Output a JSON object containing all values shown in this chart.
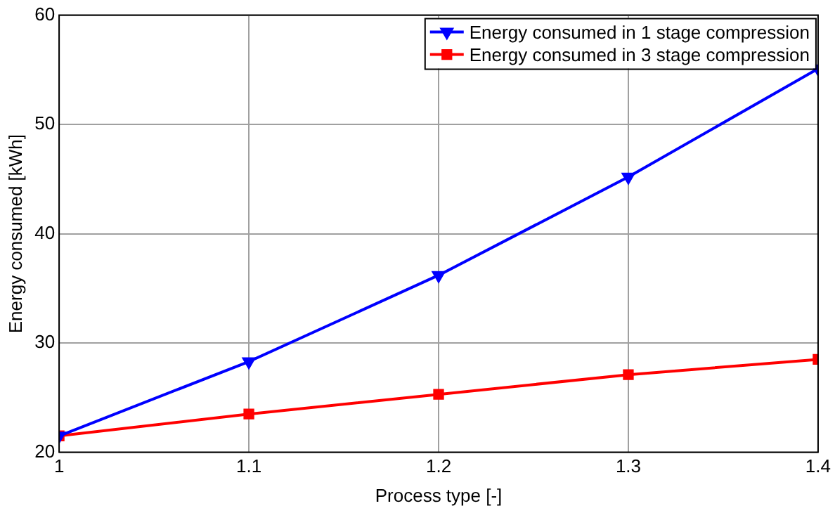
{
  "chart_data": {
    "type": "line",
    "xlabel": "Process type [-]",
    "ylabel": "Energy consumed [kWh]",
    "x": [
      1,
      1.1,
      1.2,
      1.3,
      1.4
    ],
    "series": [
      {
        "name": "Energy consumed in 1 stage compression",
        "color": "#0000ff",
        "marker": "triangle",
        "values": [
          21.5,
          28.3,
          36.2,
          45.2,
          55.1
        ]
      },
      {
        "name": "Energy consumed in 3 stage compression",
        "color": "#ff0000",
        "marker": "square",
        "values": [
          21.5,
          23.5,
          25.3,
          27.1,
          28.5
        ]
      }
    ],
    "xlim": [
      1,
      1.4
    ],
    "xticks": [
      1,
      1.1,
      1.2,
      1.3,
      1.4
    ],
    "ylim": [
      20,
      60
    ],
    "yticks": [
      20,
      30,
      40,
      50,
      60
    ],
    "grid": true,
    "legend": "top right",
    "line_style": "solid"
  }
}
